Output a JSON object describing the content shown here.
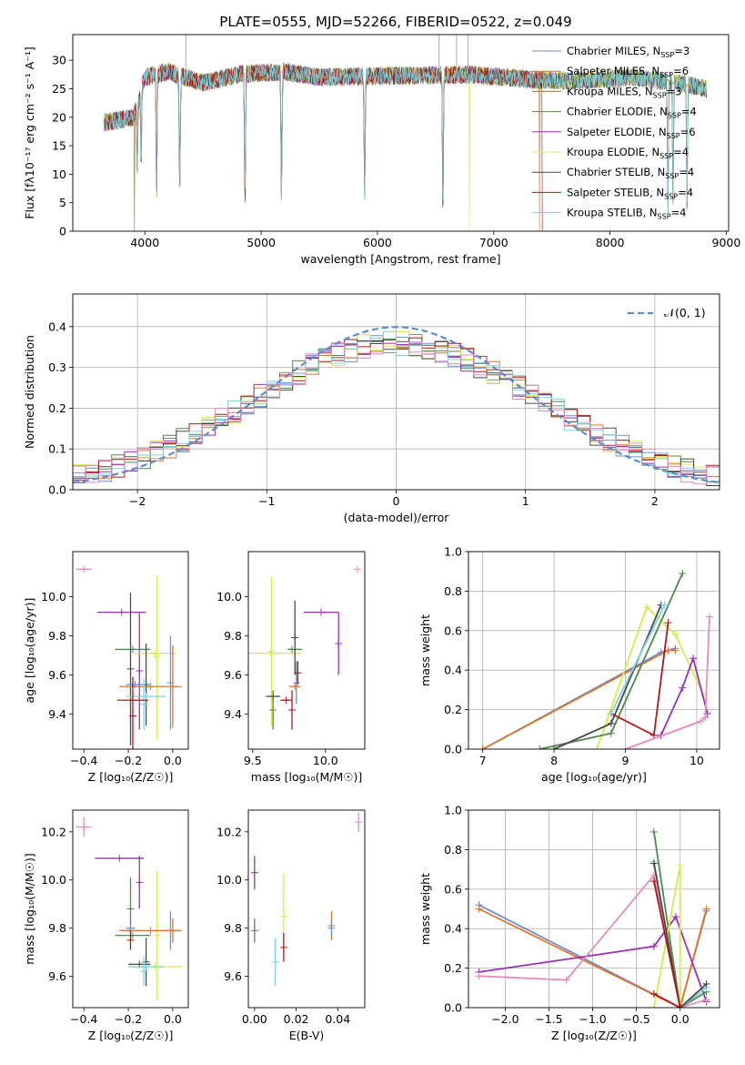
{
  "figure_title": "PLATE=0555, MJD=52266, FIBERID=0522, z=0.049",
  "colors": {
    "Chabrier MILES": "#6a8fd8",
    "Salpeter MILES": "#e0772a",
    "Kroupa MILES": "#9a7b1e",
    "Chabrier ELODIE": "#4e8a4a",
    "Salpeter ELODIE": "#9a2fb8",
    "Kroupa ELODIE": "#d4ec4a",
    "Chabrier STELIB": "#4a4a4a",
    "Salpeter STELIB": "#b01818",
    "Kroupa STELIB": "#7fd2de",
    "extra": "#e48bbf"
  },
  "chart_data": [
    {
      "type": "line",
      "title": "PLATE=0555, MJD=52266, FIBERID=0522, z=0.049",
      "xlabel": "wavelength [Angstrom, rest frame]",
      "ylabel": "Flux [fλ10⁻¹⁷ erg cm⁻² s⁻¹ A⁻¹]",
      "xlim": [
        3380,
        9020
      ],
      "ylim": [
        0,
        34.5
      ],
      "xticks": [
        "4000",
        "5000",
        "6000",
        "7000",
        "8000",
        "9000"
      ],
      "yticks": [
        "0",
        "5",
        "10",
        "15",
        "20",
        "25",
        "30"
      ],
      "grid": false,
      "legend_position": "top-right",
      "legend": [
        {
          "name": "Chabrier MILES",
          "base": "Chabrier MILES, N",
          "n": "3"
        },
        {
          "name": "Salpeter MILES",
          "base": "Salpeter MILES, N",
          "n": "6"
        },
        {
          "name": "Kroupa MILES",
          "base": "Kroupa MILES, N",
          "n": "3"
        },
        {
          "name": "Chabrier ELODIE",
          "base": "Chabrier ELODIE, N",
          "n": "4"
        },
        {
          "name": "Salpeter ELODIE",
          "base": "Salpeter ELODIE, N",
          "n": "6"
        },
        {
          "name": "Kroupa ELODIE",
          "base": "Kroupa ELODIE, N",
          "n": "4"
        },
        {
          "name": "Chabrier STELIB",
          "base": "Chabrier STELIB, N",
          "n": "4"
        },
        {
          "name": "Salpeter STELIB",
          "base": "Salpeter STELIB, N",
          "n": "4"
        },
        {
          "name": "Kroupa STELIB",
          "base": "Kroupa STELIB, N",
          "n": "4"
        }
      ],
      "legend_subscript": "SSP",
      "continuum": [
        [
          3650,
          19
        ],
        [
          3900,
          20
        ],
        [
          4000,
          27
        ],
        [
          4200,
          28
        ],
        [
          4500,
          26
        ],
        [
          4800,
          27.5
        ],
        [
          5200,
          28
        ],
        [
          5500,
          27
        ],
        [
          5900,
          27.2
        ],
        [
          6300,
          27.3
        ],
        [
          6800,
          27.5
        ],
        [
          7100,
          27
        ],
        [
          7400,
          26.5
        ],
        [
          7800,
          26.5
        ],
        [
          8200,
          27
        ],
        [
          8600,
          26
        ],
        [
          8830,
          25
        ]
      ],
      "absorption_lines": [
        [
          3934,
          10
        ],
        [
          3968,
          11
        ],
        [
          4101,
          4
        ],
        [
          4300,
          5
        ],
        [
          4861,
          3
        ],
        [
          5175,
          4
        ],
        [
          5890,
          4
        ],
        [
          6563,
          2
        ],
        [
          8498,
          2
        ],
        [
          8542,
          3
        ],
        [
          8662,
          3
        ]
      ],
      "spikes": [
        [
          4352,
          34.5
        ],
        [
          6530,
          34.5
        ],
        [
          6680,
          34.5
        ],
        [
          6780,
          34.5
        ]
      ],
      "dropouts": [
        {
          "x": 3910,
          "series": "Kroupa MILES"
        },
        {
          "x": 6790,
          "series": "Kroupa ELODIE"
        },
        {
          "x": 7420,
          "series": "Salpeter STELIB"
        },
        {
          "x": 7395,
          "series": "Salpeter MILES"
        }
      ]
    },
    {
      "type": "area",
      "xlabel": "(data-model)/error",
      "ylabel": "Normed distribution",
      "xlim": [
        -2.5,
        2.5
      ],
      "ylim": [
        0,
        0.48
      ],
      "xticks": [
        "−2",
        "−1",
        "0",
        "1",
        "2"
      ],
      "yticks": [
        "0.0",
        "0.1",
        "0.2",
        "0.3",
        "0.4"
      ],
      "grid": true,
      "legend_position": "top-right",
      "reference_curve": {
        "name": "𝒩(0, 1)",
        "mu": 0,
        "sigma": 1,
        "style": "dashed",
        "color": "#5b8bd0"
      },
      "histogram_bin_width": 0.1,
      "histogram_series": [
        "Chabrier MILES",
        "Salpeter MILES",
        "Chabrier ELODIE",
        "Salpeter ELODIE",
        "Kroupa ELODIE",
        "Chabrier STELIB",
        "Salpeter STELIB",
        "Kroupa STELIB",
        "extra"
      ]
    },
    {
      "type": "scatter",
      "xlabel": "Z [log₁₀(Z/Z☉)]",
      "ylabel": "age  [log₁₀(age/yr)]",
      "xlim": [
        -0.45,
        0.07
      ],
      "ylim": [
        9.22,
        10.23
      ],
      "xticks": [
        "−0.4",
        "−0.2",
        "0.0"
      ],
      "yticks": [
        "9.4",
        "9.6",
        "9.8",
        "10.0"
      ],
      "grid": false,
      "points": [
        {
          "series": "extra",
          "x": -0.4,
          "xerr": 0.035,
          "y": 10.14,
          "yerr": 0.0
        },
        {
          "series": "Salpeter ELODIE",
          "x": -0.23,
          "xerr": 0.11,
          "y": 9.92,
          "yerr": 0.0
        },
        {
          "series": "Salpeter ELODIE",
          "x": -0.15,
          "xerr": 0.0,
          "y": 9.62,
          "yerr": 0.3
        },
        {
          "series": "Chabrier ELODIE",
          "x": -0.18,
          "xerr": 0.08,
          "y": 9.73,
          "yerr": 0.0
        },
        {
          "series": "Kroupa ELODIE",
          "x": -0.08,
          "xerr": 0.1,
          "y": 9.71,
          "yerr": 0.0
        },
        {
          "series": "Kroupa ELODIE",
          "x": -0.07,
          "xerr": 0.0,
          "y": 9.69,
          "yerr": 0.42
        },
        {
          "series": "Chabrier STELIB",
          "x": -0.19,
          "xerr": 0.0,
          "y": 9.63,
          "yerr": 0.39
        },
        {
          "series": "Chabrier STELIB",
          "x": -0.12,
          "xerr": 0.0,
          "y": 9.55,
          "yerr": 0.21
        },
        {
          "series": "Chabrier MILES",
          "x": -0.01,
          "xerr": 0.0,
          "y": 9.56,
          "yerr": 0.24
        },
        {
          "series": "Salpeter MILES",
          "x": -0.1,
          "xerr": 0.14,
          "y": 9.54,
          "yerr": 0.0
        },
        {
          "series": "Salpeter MILES",
          "x": 0.0,
          "xerr": 0.0,
          "y": 9.54,
          "yerr": 0.21
        },
        {
          "series": "Chabrier MILES",
          "x": -0.17,
          "xerr": 0.04,
          "y": 9.55,
          "yerr": 0.0
        },
        {
          "series": "Kroupa STELIB",
          "x": -0.12,
          "xerr": 0.09,
          "y": 9.49,
          "yerr": 0.0
        },
        {
          "series": "Kroupa STELIB",
          "x": -0.13,
          "xerr": 0.0,
          "y": 9.45,
          "yerr": 0.13
        },
        {
          "series": "Salpeter STELIB",
          "x": -0.18,
          "xerr": 0.07,
          "y": 9.47,
          "yerr": 0.0
        },
        {
          "series": "Salpeter STELIB",
          "x": -0.18,
          "xerr": 0.0,
          "y": 9.39,
          "yerr": 0.2
        }
      ]
    },
    {
      "type": "scatter",
      "xlabel": "mass [log₁₀(M/M☉)]",
      "ylabel": "",
      "xlim": [
        9.47,
        10.27
      ],
      "ylim": [
        9.22,
        10.23
      ],
      "xticks": [
        "9.5",
        "10.0"
      ],
      "yticks": [
        "9.4",
        "9.6",
        "9.8",
        "10.0"
      ],
      "grid": false,
      "points": [
        {
          "series": "extra",
          "x": 10.22,
          "xerr": 0.0,
          "y": 10.14,
          "yerr": 0.0
        },
        {
          "series": "Salpeter ELODIE",
          "x": 10.09,
          "xerr": 0.0,
          "y": 9.76,
          "yerr": 0.16
        },
        {
          "series": "Salpeter ELODIE",
          "x": 9.97,
          "xerr": 0.12,
          "y": 9.92,
          "yerr": 0.0
        },
        {
          "series": "Kroupa ELODIE",
          "x": 9.63,
          "xerr": 0.0,
          "y": 9.72,
          "yerr": 0.38
        },
        {
          "series": "Kroupa ELODIE",
          "x": 9.62,
          "xerr": 0.21,
          "y": 9.71,
          "yerr": 0.0
        },
        {
          "series": "Chabrier ELODIE",
          "x": 9.77,
          "xerr": 0.0,
          "y": 9.73,
          "yerr": 0.0
        },
        {
          "series": "Chabrier ELODIE",
          "x": 9.79,
          "xerr": 0.05,
          "y": 9.73,
          "yerr": 0.0
        },
        {
          "series": "Chabrier STELIB",
          "x": 9.79,
          "xerr": 0.0,
          "y": 9.79,
          "yerr": 0.19
        },
        {
          "series": "Chabrier ELODIE",
          "x": 9.64,
          "xerr": 0.0,
          "y": 9.42,
          "yerr": 0.1
        },
        {
          "series": "Chabrier MILES",
          "x": 9.8,
          "xerr": 0.0,
          "y": 9.56,
          "yerr": 0.11
        },
        {
          "series": "Salpeter MILES",
          "x": 9.79,
          "xerr": 0.04,
          "y": 9.54,
          "yerr": 0.0
        },
        {
          "series": "Kroupa STELIB",
          "x": 9.64,
          "xerr": 0.04,
          "y": 9.49,
          "yerr": 0.0
        },
        {
          "series": "Chabrier STELIB",
          "x": 9.64,
          "xerr": 0.05,
          "y": 9.49,
          "yerr": 0.0
        },
        {
          "series": "Salpeter STELIB",
          "x": 9.77,
          "xerr": 0.0,
          "y": 9.42,
          "yerr": 0.1
        },
        {
          "series": "Salpeter STELIB",
          "x": 9.73,
          "xerr": 0.04,
          "y": 9.47,
          "yerr": 0.0
        },
        {
          "series": "Salpeter STELIB",
          "x": 9.81,
          "xerr": 0.0,
          "y": 9.61,
          "yerr": 0.06
        }
      ]
    },
    {
      "type": "line",
      "xlabel": "age  [log₁₀(age/yr)]",
      "ylabel": "mass weight",
      "xlim": [
        6.8,
        10.32
      ],
      "ylim": [
        0,
        1.0
      ],
      "xticks": [
        "7",
        "8",
        "9",
        "10"
      ],
      "yticks": [
        "0.0",
        "0.2",
        "0.4",
        "0.6",
        "0.8",
        "1.0"
      ],
      "grid": true,
      "series": [
        {
          "name": "Chabrier MILES",
          "x": [
            7.0,
            9.5,
            9.7
          ],
          "y": [
            0.0,
            0.49,
            0.51
          ]
        },
        {
          "name": "Salpeter MILES",
          "x": [
            7.0,
            9.6,
            9.7
          ],
          "y": [
            0.0,
            0.5,
            0.5
          ]
        },
        {
          "name": "Kroupa ELODIE",
          "x": [
            8.6,
            9.3,
            9.7,
            10.1
          ],
          "y": [
            0.0,
            0.72,
            0.58,
            0.27
          ]
        },
        {
          "name": "Chabrier ELODIE",
          "x": [
            7.8,
            8.8,
            9.8
          ],
          "y": [
            0.0,
            0.08,
            0.89
          ]
        },
        {
          "name": "Chabrier STELIB",
          "x": [
            8.0,
            8.8,
            9.5
          ],
          "y": [
            0.0,
            0.13,
            0.73
          ]
        },
        {
          "name": "Salpeter STELIB",
          "x": [
            8.8,
            9.4,
            9.6
          ],
          "y": [
            0.18,
            0.07,
            0.64
          ]
        },
        {
          "name": "Kroupa STELIB",
          "x": [
            8.8,
            9.55
          ],
          "y": [
            0.18,
            0.73
          ]
        },
        {
          "name": "Salpeter ELODIE",
          "x": [
            9.5,
            9.8,
            9.95,
            10.15
          ],
          "y": [
            0.07,
            0.31,
            0.46,
            0.18
          ]
        },
        {
          "name": "extra",
          "x": [
            9.0,
            10.05,
            10.12,
            10.18
          ],
          "y": [
            0.0,
            0.14,
            0.16,
            0.67
          ]
        }
      ]
    },
    {
      "type": "scatter",
      "xlabel": "Z [log₁₀(Z/Z☉)]",
      "ylabel": "mass [log₁₀(M/M☉)]",
      "xlim": [
        -0.45,
        0.07
      ],
      "ylim": [
        9.47,
        10.29
      ],
      "xticks": [
        "−0.4",
        "−0.2",
        "0.0"
      ],
      "yticks": [
        "9.6",
        "9.8",
        "10.0",
        "10.2"
      ],
      "grid": false,
      "points": [
        {
          "series": "extra",
          "x": -0.4,
          "xerr": 0.035,
          "y": 10.22,
          "yerr": 0.04
        },
        {
          "series": "Salpeter ELODIE",
          "x": -0.24,
          "xerr": 0.11,
          "y": 10.09,
          "yerr": 0.0
        },
        {
          "series": "Salpeter ELODIE",
          "x": -0.15,
          "xerr": 0.0,
          "y": 9.99,
          "yerr": 0.11
        },
        {
          "series": "Kroupa ELODIE",
          "x": -0.07,
          "xerr": 0.0,
          "y": 9.77,
          "yerr": 0.27
        },
        {
          "series": "Kroupa ELODIE",
          "x": -0.08,
          "xerr": 0.12,
          "y": 9.64,
          "yerr": 0.0
        },
        {
          "series": "Chabrier ELODIE",
          "x": -0.18,
          "xerr": 0.08,
          "y": 9.77,
          "yerr": 0.0
        },
        {
          "series": "Chabrier ELODIE",
          "x": -0.19,
          "xerr": 0.0,
          "y": 9.88,
          "yerr": 0.13
        },
        {
          "series": "Chabrier MILES",
          "x": -0.01,
          "xerr": 0.0,
          "y": 9.79,
          "yerr": 0.08
        },
        {
          "series": "Salpeter MILES",
          "x": -0.1,
          "xerr": 0.14,
          "y": 9.79,
          "yerr": 0.0
        },
        {
          "series": "Salpeter MILES",
          "x": 0.0,
          "xerr": 0.0,
          "y": 9.79,
          "yerr": 0.05
        },
        {
          "series": "Chabrier MILES",
          "x": -0.19,
          "xerr": 0.02,
          "y": 9.8,
          "yerr": 0.0
        },
        {
          "series": "Chabrier STELIB",
          "x": -0.12,
          "xerr": 0.0,
          "y": 9.66,
          "yerr": 0.1
        },
        {
          "series": "Chabrier STELIB",
          "x": -0.15,
          "xerr": 0.05,
          "y": 9.65,
          "yerr": 0.0
        },
        {
          "series": "Kroupa STELIB",
          "x": -0.12,
          "xerr": 0.08,
          "y": 9.64,
          "yerr": 0.0
        },
        {
          "series": "Kroupa STELIB",
          "x": -0.13,
          "xerr": 0.0,
          "y": 9.62,
          "yerr": 0.06
        },
        {
          "series": "Salpeter STELIB",
          "x": -0.19,
          "xerr": 0.0,
          "y": 9.75,
          "yerr": 0.04
        }
      ]
    },
    {
      "type": "scatter",
      "xlabel": "E(B-V)",
      "ylabel": "",
      "xlim": [
        -0.003,
        0.053
      ],
      "ylim": [
        9.47,
        10.29
      ],
      "xticks": [
        "0.00",
        "0.02",
        "0.04"
      ],
      "yticks": [
        "9.6",
        "9.8",
        "10.0",
        "10.2"
      ],
      "grid": false,
      "points": [
        {
          "series": "extra",
          "x": 0.05,
          "xerr": 0.0,
          "y": 10.24,
          "yerr": 0.04
        },
        {
          "series": "Salpeter ELODIE",
          "x": 0.0,
          "xerr": 0.0,
          "y": 10.03,
          "yerr": 0.07
        },
        {
          "series": "Chabrier ELODIE",
          "x": 0.0,
          "xerr": 0.0,
          "y": 9.79,
          "yerr": 0.05
        },
        {
          "series": "Kroupa ELODIE",
          "x": 0.014,
          "xerr": 0.0,
          "y": 9.85,
          "yerr": 0.18
        },
        {
          "series": "Salpeter STELIB",
          "x": 0.014,
          "xerr": 0.0,
          "y": 9.72,
          "yerr": 0.06
        },
        {
          "series": "Kroupa STELIB",
          "x": 0.01,
          "xerr": 0.0,
          "y": 9.66,
          "yerr": 0.1
        },
        {
          "series": "Salpeter MILES",
          "x": 0.037,
          "xerr": 0.0,
          "y": 9.81,
          "yerr": 0.06
        },
        {
          "series": "Chabrier MILES",
          "x": 0.037,
          "xerr": 0.0,
          "y": 9.8,
          "yerr": 0.03
        }
      ]
    },
    {
      "type": "line",
      "xlabel": "Z [log₁₀(Z/Z☉)]",
      "ylabel": "mass weight",
      "xlim": [
        -2.42,
        0.45
      ],
      "ylim": [
        0,
        1.0
      ],
      "xticks": [
        "−2.0",
        "−1.5",
        "−1.0",
        "−0.5",
        "0.0"
      ],
      "yticks": [
        "0.0",
        "0.2",
        "0.4",
        "0.6",
        "0.8",
        "1.0"
      ],
      "grid": true,
      "series": [
        {
          "name": "Chabrier MILES",
          "x": [
            -2.3,
            0.0,
            0.3
          ],
          "y": [
            0.52,
            0.0,
            0.49
          ]
        },
        {
          "name": "Salpeter MILES",
          "x": [
            -2.3,
            0.0,
            0.3
          ],
          "y": [
            0.5,
            0.0,
            0.5
          ]
        },
        {
          "name": "Salpeter ELODIE",
          "x": [
            -2.3,
            -0.3,
            -0.05,
            0.3
          ],
          "y": [
            0.18,
            0.31,
            0.46,
            0.03
          ]
        },
        {
          "name": "extra",
          "x": [
            -2.3,
            -1.3,
            -0.3,
            0.0,
            0.3
          ],
          "y": [
            0.16,
            0.14,
            0.67,
            0.0,
            0.04
          ]
        },
        {
          "name": "Chabrier ELODIE",
          "x": [
            -0.3,
            0.0,
            0.3
          ],
          "y": [
            0.89,
            0.0,
            0.08
          ]
        },
        {
          "name": "Kroupa STELIB",
          "x": [
            -0.3,
            0.0,
            0.3
          ],
          "y": [
            0.74,
            0.0,
            0.1
          ]
        },
        {
          "name": "Kroupa ELODIE",
          "x": [
            -0.3,
            0.0,
            0.0
          ],
          "y": [
            0.0,
            0.72,
            0.0
          ]
        },
        {
          "name": "Chabrier STELIB",
          "x": [
            -0.3,
            0.0,
            0.3
          ],
          "y": [
            0.73,
            0.0,
            0.12
          ]
        },
        {
          "name": "Salpeter STELIB",
          "x": [
            -0.3,
            0.0,
            -0.3
          ],
          "y": [
            0.64,
            0.0,
            0.07
          ]
        }
      ]
    }
  ]
}
